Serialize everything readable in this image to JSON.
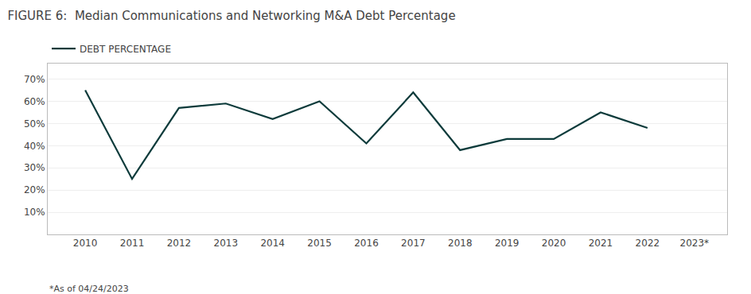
{
  "chart_data": {
    "type": "line",
    "title": "FIGURE 6:  Median Communications and Networking M&A Debt Percentage",
    "x": [
      2010,
      2011,
      2012,
      2013,
      2014,
      2015,
      2016,
      2017,
      2018,
      2019,
      2020,
      2021,
      2022
    ],
    "series": [
      {
        "name": "DEBT PERCENTAGE",
        "color": "#0d3b3b",
        "values": [
          0.65,
          0.25,
          0.57,
          0.59,
          0.52,
          0.6,
          0.41,
          0.64,
          0.38,
          0.43,
          0.43,
          0.55,
          0.48
        ]
      }
    ],
    "xlim": [
      2009.2,
      2023.7
    ],
    "xticks": [
      2010,
      2011,
      2012,
      2013,
      2014,
      2015,
      2016,
      2017,
      2018,
      2019,
      2020,
      2021,
      2022,
      {
        "value": 2023,
        "label": "2023*"
      }
    ],
    "ylim": [
      0,
      0.77
    ],
    "yticks": [
      {
        "value": 0.1,
        "label": "10%"
      },
      {
        "value": 0.2,
        "label": "20%"
      },
      {
        "value": 0.3,
        "label": "30%"
      },
      {
        "value": 0.4,
        "label": "40%"
      },
      {
        "value": 0.5,
        "label": "50%"
      },
      {
        "value": 0.6,
        "label": "60%"
      },
      {
        "value": 0.7,
        "label": "70%"
      }
    ],
    "grid": true,
    "legend": "upper left",
    "annotations": [
      "*As of 04/24/2023"
    ]
  }
}
